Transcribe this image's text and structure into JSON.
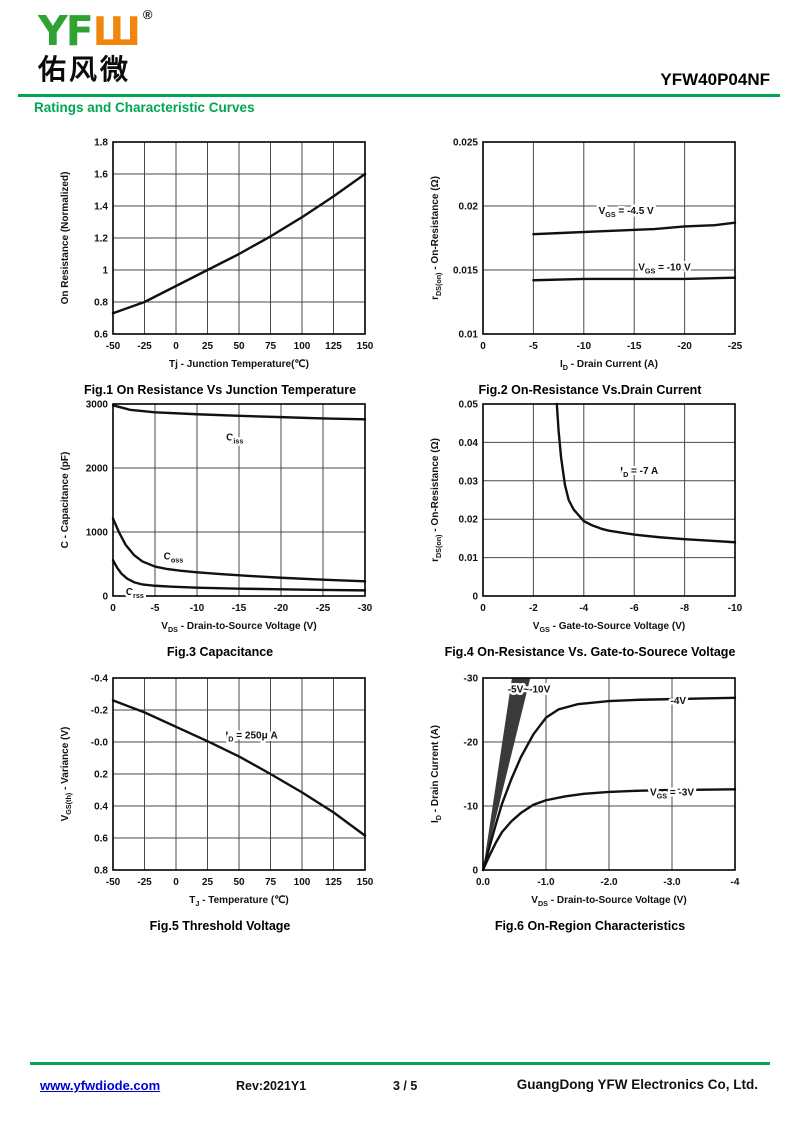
{
  "theme": {
    "green": "#00a651",
    "logo_green": "#2fa232",
    "logo_orange": "#f0860b",
    "link_blue": "#0000d4",
    "curve_black": "#111111"
  },
  "header": {
    "logo": {
      "green_text": "YF",
      "orange_text": "Ш",
      "registered_mark": "®",
      "chinese_text": "佑风微"
    },
    "part_number": "YFW40P04NF",
    "section_title": "Ratings and Characteristic Curves"
  },
  "footer": {
    "website": "www.yfwdiode.com",
    "revision": "Rev:2021Y1",
    "page_indicator": "3 / 5",
    "company": "GuangDong YFW Electronics Co, Ltd."
  },
  "chart_data": [
    {
      "type": "line",
      "caption": "Fig.1 On Resistance Vs Junction Temperature",
      "xlim": [
        -50,
        150
      ],
      "ylim": [
        0.6,
        1.8
      ],
      "xtick_vals": [
        -50,
        -25,
        0,
        25,
        50,
        75,
        100,
        125,
        150
      ],
      "xtick_labels": [
        "-50",
        "-25",
        "0",
        "25",
        "50",
        "75",
        "100",
        "125",
        "150"
      ],
      "ytick_vals": [
        0.6,
        0.8,
        1.0,
        1.2,
        1.4,
        1.6,
        1.8
      ],
      "ytick_labels": [
        "0.6",
        "0.8",
        "1",
        "1.2",
        "1.4",
        "1.6",
        "1.8"
      ],
      "xlabel_parts": [
        [
          "Tj - Junction Temperature(℃)",
          0
        ]
      ],
      "ylabel_parts": [
        [
          "On Resistance (Normalized)",
          0
        ]
      ],
      "series": [
        {
          "name": "normalized-on-resistance",
          "points": [
            [
              -50,
              0.73
            ],
            [
              -25,
              0.8
            ],
            [
              0,
              0.9
            ],
            [
              25,
              1.0
            ],
            [
              50,
              1.1
            ],
            [
              75,
              1.21
            ],
            [
              100,
              1.33
            ],
            [
              125,
              1.46
            ],
            [
              150,
              1.6
            ]
          ]
        }
      ],
      "areas": [],
      "labels": []
    },
    {
      "type": "line",
      "caption": "Fig.2 On-Resistance Vs.Drain Current",
      "xlim": [
        0,
        -25
      ],
      "ylim": [
        0.01,
        0.025
      ],
      "xtick_vals": [
        0,
        -5,
        -10,
        -15,
        -20,
        -25
      ],
      "xtick_labels": [
        "0",
        "-5",
        "-10",
        "-15",
        "-20",
        "-25"
      ],
      "ytick_vals": [
        0.01,
        0.015,
        0.02,
        0.025
      ],
      "ytick_labels": [
        "0.01",
        "0.015",
        "0.02",
        "0.025"
      ],
      "xlabel_parts": [
        [
          "I",
          0
        ],
        [
          "D",
          1
        ],
        [
          " - Drain Current (A)",
          0
        ]
      ],
      "ylabel_parts": [
        [
          "r",
          0
        ],
        [
          "DS(on)",
          1
        ],
        [
          " - On-Resistance (Ω)",
          0
        ]
      ],
      "series": [
        {
          "name": "vgs-minus-4p5v",
          "points": [
            [
              -5,
              0.0178
            ],
            [
              -8,
              0.0179
            ],
            [
              -11,
              0.018
            ],
            [
              -14,
              0.0181
            ],
            [
              -17,
              0.0182
            ],
            [
              -20,
              0.0184
            ],
            [
              -23,
              0.0185
            ],
            [
              -25,
              0.0187
            ]
          ]
        },
        {
          "name": "vgs-minus-10v",
          "points": [
            [
              -5,
              0.0142
            ],
            [
              -10,
              0.0143
            ],
            [
              -15,
              0.0143
            ],
            [
              -20,
              0.0143
            ],
            [
              -25,
              0.0144
            ]
          ]
        }
      ],
      "areas": [],
      "labels": [
        {
          "parts": [
            [
              "V",
              0
            ],
            [
              "GS",
              1
            ],
            [
              " = -4.5 V",
              0
            ]
          ],
          "x": -14.2,
          "y": 0.0196,
          "anchor": "middle"
        },
        {
          "parts": [
            [
              "V",
              0
            ],
            [
              "GS",
              1
            ],
            [
              " = -10 V",
              0
            ]
          ],
          "x": -18.0,
          "y": 0.0152,
          "anchor": "middle"
        }
      ]
    },
    {
      "type": "line",
      "caption": "Fig.3 Capacitance",
      "xlim": [
        0,
        -30
      ],
      "ylim": [
        0,
        3000
      ],
      "xtick_vals": [
        0,
        -5,
        -10,
        -15,
        -20,
        -25,
        -30
      ],
      "xtick_labels": [
        "0",
        "-5",
        "-10",
        "-15",
        "-20",
        "-25",
        "-30"
      ],
      "ytick_vals": [
        0,
        1000,
        2000,
        3000
      ],
      "ytick_labels": [
        "0",
        "1000",
        "2000",
        "3000"
      ],
      "xlabel_parts": [
        [
          "V",
          0
        ],
        [
          "DS",
          1
        ],
        [
          " - Drain-to-Source Voltage (V)",
          0
        ]
      ],
      "ylabel_parts": [
        [
          "C - Capacitance (pF)",
          0
        ]
      ],
      "series": [
        {
          "name": "Ciss",
          "points": [
            [
              0,
              2980
            ],
            [
              -2,
              2910
            ],
            [
              -5,
              2870
            ],
            [
              -10,
              2840
            ],
            [
              -15,
              2815
            ],
            [
              -20,
              2795
            ],
            [
              -25,
              2775
            ],
            [
              -30,
              2760
            ]
          ]
        },
        {
          "name": "Coss",
          "points": [
            [
              0,
              1210
            ],
            [
              -0.7,
              1000
            ],
            [
              -1.5,
              800
            ],
            [
              -2.5,
              640
            ],
            [
              -3.5,
              540
            ],
            [
              -5,
              460
            ],
            [
              -6.5,
              420
            ],
            [
              -8,
              395
            ],
            [
              -10,
              370
            ],
            [
              -13,
              340
            ],
            [
              -16,
              315
            ],
            [
              -20,
              285
            ],
            [
              -25,
              255
            ],
            [
              -30,
              230
            ]
          ]
        },
        {
          "name": "Crss",
          "points": [
            [
              0,
              560
            ],
            [
              -0.5,
              440
            ],
            [
              -1,
              350
            ],
            [
              -1.7,
              270
            ],
            [
              -2.5,
              215
            ],
            [
              -3.5,
              180
            ],
            [
              -5,
              160
            ],
            [
              -7,
              145
            ],
            [
              -10,
              130
            ],
            [
              -15,
              115
            ],
            [
              -20,
              105
            ],
            [
              -25,
              95
            ],
            [
              -30,
              88
            ]
          ]
        }
      ],
      "areas": [],
      "labels": [
        {
          "parts": [
            [
              "C",
              0
            ],
            [
              "iss",
              1
            ]
          ],
          "x": -14.5,
          "y": 2480,
          "anchor": "middle"
        },
        {
          "parts": [
            [
              "C",
              0
            ],
            [
              "oss",
              1
            ]
          ],
          "x": -7.2,
          "y": 620,
          "anchor": "middle"
        },
        {
          "parts": [
            [
              "C",
              0
            ],
            [
              "rss",
              1
            ]
          ],
          "x": -2.6,
          "y": 60,
          "anchor": "middle"
        }
      ]
    },
    {
      "type": "line",
      "caption": "Fig.4 On-Resistance Vs. Gate-to-Sourece Voltage",
      "xlim": [
        0,
        -10
      ],
      "ylim": [
        0,
        0.05
      ],
      "xtick_vals": [
        0,
        -2,
        -4,
        -6,
        -8,
        -10
      ],
      "xtick_labels": [
        "0",
        "-2",
        "-4",
        "-6",
        "-8",
        "-10"
      ],
      "ytick_vals": [
        0,
        0.01,
        0.02,
        0.03,
        0.04,
        0.05
      ],
      "ytick_labels": [
        "0",
        "0.01",
        "0.02",
        "0.03",
        "0.04",
        "0.05"
      ],
      "xlabel_parts": [
        [
          "V",
          0
        ],
        [
          "GS",
          1
        ],
        [
          " - Gate-to-Source Voltage (V)",
          0
        ]
      ],
      "ylabel_parts": [
        [
          "r",
          0
        ],
        [
          "DS(on)",
          1
        ],
        [
          " - On-Resistance (Ω)",
          0
        ]
      ],
      "series": [
        {
          "name": "id-minus-7a",
          "points": [
            [
              -2.93,
              0.05
            ],
            [
              -3.0,
              0.043
            ],
            [
              -3.1,
              0.036
            ],
            [
              -3.25,
              0.029
            ],
            [
              -3.4,
              0.025
            ],
            [
              -3.6,
              0.0225
            ],
            [
              -3.8,
              0.021
            ],
            [
              -4.0,
              0.0195
            ],
            [
              -4.3,
              0.0185
            ],
            [
              -4.7,
              0.0175
            ],
            [
              -5,
              0.017
            ],
            [
              -5.5,
              0.0165
            ],
            [
              -6,
              0.016
            ],
            [
              -7,
              0.0153
            ],
            [
              -8,
              0.0148
            ],
            [
              -9,
              0.0144
            ],
            [
              -10,
              0.014
            ]
          ]
        }
      ],
      "areas": [],
      "labels": [
        {
          "parts": [
            [
              "I",
              0
            ],
            [
              "D",
              1
            ],
            [
              " = -7 A",
              0
            ]
          ],
          "x": -6.2,
          "y": 0.0325,
          "anchor": "middle"
        }
      ]
    },
    {
      "type": "line",
      "caption": "Fig.5 Threshold Voltage",
      "xlim": [
        -50,
        150
      ],
      "ylim": [
        0.8,
        -0.4
      ],
      "xtick_vals": [
        -50,
        -25,
        0,
        25,
        50,
        75,
        100,
        125,
        150
      ],
      "xtick_labels": [
        "-50",
        "-25",
        "0",
        "25",
        "50",
        "75",
        "100",
        "125",
        "150"
      ],
      "ytick_vals": [
        -0.4,
        -0.2,
        0,
        0.2,
        0.4,
        0.6,
        0.8
      ],
      "ytick_labels": [
        "-0.4",
        "-0.2",
        "-0.0",
        "0.2",
        "0.4",
        "0.6",
        "0.8"
      ],
      "xlabel_parts": [
        [
          "T",
          0
        ],
        [
          "J",
          1
        ],
        [
          " - Temperature (℃)",
          0
        ]
      ],
      "ylabel_parts": [
        [
          "V",
          0
        ],
        [
          "GS(th)",
          1
        ],
        [
          " - Variance (V)",
          0
        ]
      ],
      "series": [
        {
          "name": "vgsth-variance",
          "points": [
            [
              -50,
              -0.26
            ],
            [
              -25,
              -0.185
            ],
            [
              0,
              -0.095
            ],
            [
              25,
              -0.005
            ],
            [
              50,
              0.09
            ],
            [
              75,
              0.2
            ],
            [
              100,
              0.315
            ],
            [
              125,
              0.44
            ],
            [
              150,
              0.585
            ]
          ]
        }
      ],
      "areas": [],
      "labels": [
        {
          "parts": [
            [
              "I",
              0
            ],
            [
              "D",
              1
            ],
            [
              " = 250μ A",
              0
            ]
          ],
          "x": 60,
          "y": -0.04,
          "anchor": "middle"
        }
      ]
    },
    {
      "type": "line",
      "caption": "Fig.6 On-Region Characteristics",
      "xlim": [
        0,
        -4
      ],
      "ylim": [
        0,
        -30
      ],
      "xtick_vals": [
        0,
        -1,
        -2,
        -3,
        -4
      ],
      "xtick_labels": [
        "0.0",
        "-1.0",
        "-2.0",
        "-3.0",
        "-4"
      ],
      "ytick_vals": [
        0,
        -10,
        -20,
        -30
      ],
      "ytick_labels": [
        "0",
        "-10",
        "-20",
        "-30"
      ],
      "xlabel_parts": [
        [
          "V",
          0
        ],
        [
          "DS",
          1
        ],
        [
          " - Drain-to-Source Voltage (V)",
          0
        ]
      ],
      "ylabel_parts": [
        [
          "I",
          0
        ],
        [
          "D",
          1
        ],
        [
          " - Drain Current (A)",
          0
        ]
      ],
      "series": [
        {
          "name": "vgs-minus-4v",
          "points": [
            [
              0,
              0
            ],
            [
              -0.1,
              -3.5
            ],
            [
              -0.2,
              -7
            ],
            [
              -0.3,
              -10.3
            ],
            [
              -0.45,
              -14.2
            ],
            [
              -0.6,
              -17.6
            ],
            [
              -0.8,
              -21.2
            ],
            [
              -1.0,
              -23.8
            ],
            [
              -1.2,
              -25.1
            ],
            [
              -1.5,
              -25.9
            ],
            [
              -2.0,
              -26.4
            ],
            [
              -2.5,
              -26.6
            ],
            [
              -3.0,
              -26.7
            ],
            [
              -3.5,
              -26.8
            ],
            [
              -4,
              -26.9
            ]
          ]
        },
        {
          "name": "vgs-minus-3v",
          "points": [
            [
              0,
              0
            ],
            [
              -0.1,
              -2.2
            ],
            [
              -0.2,
              -4.2
            ],
            [
              -0.3,
              -5.9
            ],
            [
              -0.45,
              -7.6
            ],
            [
              -0.6,
              -8.9
            ],
            [
              -0.8,
              -10.2
            ],
            [
              -1.0,
              -10.9
            ],
            [
              -1.3,
              -11.5
            ],
            [
              -1.6,
              -11.9
            ],
            [
              -2.0,
              -12.2
            ],
            [
              -2.5,
              -12.4
            ],
            [
              -3.0,
              -12.5
            ],
            [
              -3.5,
              -12.55
            ],
            [
              -4,
              -12.6
            ]
          ]
        }
      ],
      "areas": [
        {
          "name": "vgs-minus5-to-minus10-band",
          "fill": "#3a3a3a",
          "points": [
            [
              0,
              0
            ],
            [
              -0.46,
              -30
            ],
            [
              -0.75,
              -30
            ]
          ]
        }
      ],
      "labels": [
        {
          "parts": [
            [
              "-5V~-10V",
              0
            ]
          ],
          "x": -0.73,
          "y": -28.2,
          "anchor": "middle"
        },
        {
          "parts": [
            [
              "-4V",
              0
            ]
          ],
          "x": -3.1,
          "y": -26.4,
          "anchor": "middle"
        },
        {
          "parts": [
            [
              "V",
              0
            ],
            [
              "GS",
              1
            ],
            [
              " = -3V",
              0
            ]
          ],
          "x": -3.0,
          "y": -12.1,
          "anchor": "middle"
        }
      ]
    }
  ]
}
